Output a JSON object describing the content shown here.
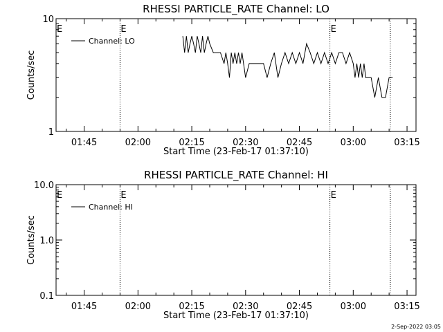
{
  "footer_date": "2-Sep-2022 03:05",
  "chart_data": [
    {
      "type": "line",
      "title": "RHESSI PARTICLE_RATE Channel: LO",
      "xlabel": "Start Time (23-Feb-17 01:37:10)",
      "ylabel": "Counts/sec",
      "y_scale": "log",
      "ylim": [
        1,
        10
      ],
      "y_ticks": [
        {
          "v": 1,
          "label": "1"
        },
        {
          "v": 10,
          "label": "10"
        }
      ],
      "x_range": [
        "01:37:10",
        "03:17:30"
      ],
      "x_ticks": [
        "01:45",
        "02:00",
        "02:15",
        "02:30",
        "02:45",
        "03:00",
        "03:15"
      ],
      "legend_entry": "Channel: LO",
      "legend_placement": "top-left",
      "event_lines": [
        {
          "time": "01:55:00",
          "label": "E"
        },
        {
          "time": "02:53:30",
          "label": "E"
        },
        {
          "time": "03:10:20",
          "label": ""
        }
      ],
      "series": [
        {
          "x": [
            "02:12:30",
            "02:13:00",
            "02:13:30",
            "02:14:00",
            "02:14:30",
            "02:15:00",
            "02:15:30",
            "02:16:00",
            "02:16:30",
            "02:17:00",
            "02:17:30",
            "02:18:00",
            "02:18:30",
            "02:19:00",
            "02:19:30",
            "02:20:00",
            "02:21:00",
            "02:22:00",
            "02:23:00",
            "02:24:00",
            "02:24:30",
            "02:25:00",
            "02:25:30",
            "02:26:00",
            "02:26:30",
            "02:27:00",
            "02:27:30",
            "02:28:00",
            "02:28:30",
            "02:29:00",
            "02:30:00",
            "02:31:00",
            "02:32:00",
            "02:33:00",
            "02:34:00",
            "02:35:00",
            "02:36:00",
            "02:37:00",
            "02:38:00",
            "02:39:00",
            "02:40:00",
            "02:41:00",
            "02:42:00",
            "02:43:00",
            "02:44:00",
            "02:45:00",
            "02:46:00",
            "02:47:00",
            "02:48:00",
            "02:49:00",
            "02:50:00",
            "02:51:00",
            "02:52:00",
            "02:53:00",
            "02:54:00",
            "02:55:00",
            "02:56:00",
            "02:57:00",
            "02:58:00",
            "02:59:00",
            "03:00:00",
            "03:00:30",
            "03:01:00",
            "03:01:30",
            "03:02:00",
            "03:02:30",
            "03:03:00",
            "03:03:30",
            "03:04:00",
            "03:05:00",
            "03:06:00",
            "03:07:00",
            "03:08:00",
            "03:08:30",
            "03:09:00",
            "03:10:00",
            "03:11:00"
          ],
          "y": [
            7,
            5,
            7,
            5,
            6,
            7,
            6,
            5,
            7,
            6,
            5,
            7,
            5,
            6,
            7,
            6,
            5,
            5,
            5,
            4,
            5,
            4,
            3,
            5,
            4,
            5,
            4,
            5,
            4,
            5,
            3,
            4,
            4,
            4,
            4,
            4,
            3,
            4,
            5,
            3,
            4,
            5,
            4,
            5,
            4,
            5,
            4,
            6,
            5,
            4,
            5,
            4,
            5,
            4,
            5,
            4,
            5,
            5,
            4,
            5,
            4,
            3,
            4,
            3,
            4,
            3,
            4,
            3,
            3,
            3,
            2,
            3,
            2,
            2,
            2,
            3,
            3
          ]
        }
      ]
    },
    {
      "type": "line",
      "title": "RHESSI PARTICLE_RATE Channel: HI",
      "xlabel": "Start Time (23-Feb-17 01:37:10)",
      "ylabel": "Counts/sec",
      "y_scale": "log",
      "ylim": [
        0.1,
        10
      ],
      "y_ticks": [
        {
          "v": 0.1,
          "label": "0.1"
        },
        {
          "v": 1,
          "label": "1.0"
        },
        {
          "v": 10,
          "label": "10.0"
        }
      ],
      "x_range": [
        "01:37:10",
        "03:17:30"
      ],
      "x_ticks": [
        "01:45",
        "02:00",
        "02:15",
        "02:30",
        "02:45",
        "03:00",
        "03:15"
      ],
      "legend_entry": "Channel: HI",
      "legend_placement": "top-left",
      "event_lines": [
        {
          "time": "01:55:00",
          "label": "E"
        },
        {
          "time": "02:53:30",
          "label": "E"
        },
        {
          "time": "03:10:20",
          "label": ""
        }
      ],
      "series": [
        {
          "x": [],
          "y": []
        }
      ]
    }
  ]
}
